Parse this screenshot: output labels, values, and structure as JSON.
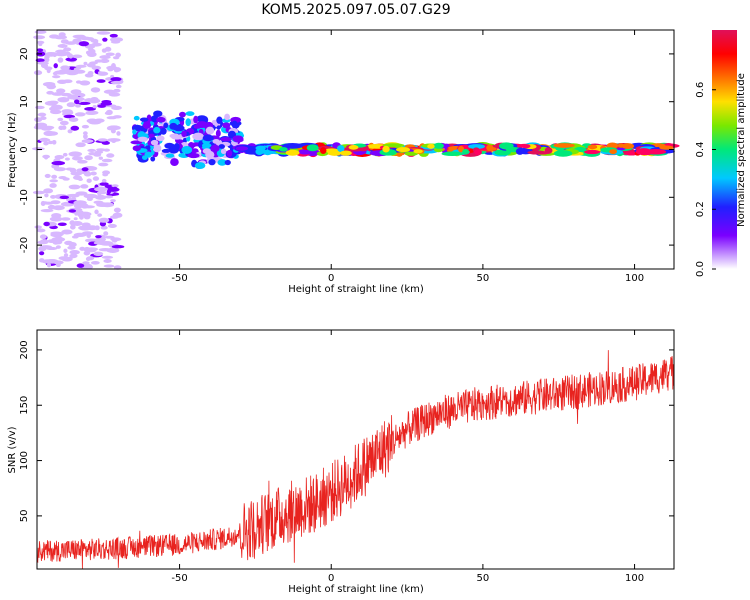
{
  "title": "KOM5.2025.097.05.07.G29",
  "colors": {
    "snr_line": "#e8231f",
    "axis": "#000000",
    "colormap": [
      "#ffffff",
      "#d8b8ff",
      "#7a00ff",
      "#2020ff",
      "#00c8ff",
      "#00e87a",
      "#7ae800",
      "#ffe000",
      "#ff7000",
      "#ff0000",
      "#ff0060",
      "#e0105a"
    ]
  },
  "chart_data": [
    {
      "type": "heatmap",
      "title": "KOM5.2025.097.05.07.G29",
      "xlabel": "Height of straight line (km)",
      "ylabel": "Frequency (Hz)",
      "xlim": [
        -97,
        113
      ],
      "ylim": [
        -25,
        25
      ],
      "xticks": [
        -50,
        0,
        50,
        100
      ],
      "yticks": [
        -20,
        -10,
        0,
        10,
        20
      ],
      "colorbar": {
        "label": "Normalized spectral amplitude",
        "range": [
          0,
          0.8
        ],
        "ticks": [
          "0.0",
          "0.2",
          "0.4",
          "0.6"
        ]
      },
      "features": [
        {
          "x_from": -97,
          "x_to": -70,
          "freq_spread_hz": 25,
          "amplitude": 0.05
        },
        {
          "x_from": -65,
          "x_to": -30,
          "center_freq_hz": 2,
          "freq_spread_hz": 6,
          "amplitude": 0.25
        },
        {
          "x_from": -30,
          "x_to": 113,
          "center_freq_hz": 0,
          "freq_spread_hz": 1.5,
          "amplitude": 0.7
        }
      ]
    },
    {
      "type": "line",
      "xlabel": "Height of straight line (km)",
      "ylabel": "SNR (v/v)",
      "xlim": [
        -97,
        113
      ],
      "ylim": [
        2,
        218
      ],
      "xticks": [
        -50,
        0,
        50,
        100
      ],
      "yticks": [
        50,
        100,
        150,
        200
      ],
      "trend": [
        {
          "x": -97,
          "y": 18
        },
        {
          "x": -75,
          "y": 20
        },
        {
          "x": -50,
          "y": 24
        },
        {
          "x": -35,
          "y": 30
        },
        {
          "x": -25,
          "y": 40
        },
        {
          "x": -15,
          "y": 52
        },
        {
          "x": -5,
          "y": 62
        },
        {
          "x": 5,
          "y": 80
        },
        {
          "x": 15,
          "y": 105
        },
        {
          "x": 25,
          "y": 128
        },
        {
          "x": 35,
          "y": 142
        },
        {
          "x": 50,
          "y": 152
        },
        {
          "x": 75,
          "y": 160
        },
        {
          "x": 100,
          "y": 170
        },
        {
          "x": 113,
          "y": 180
        }
      ]
    }
  ]
}
